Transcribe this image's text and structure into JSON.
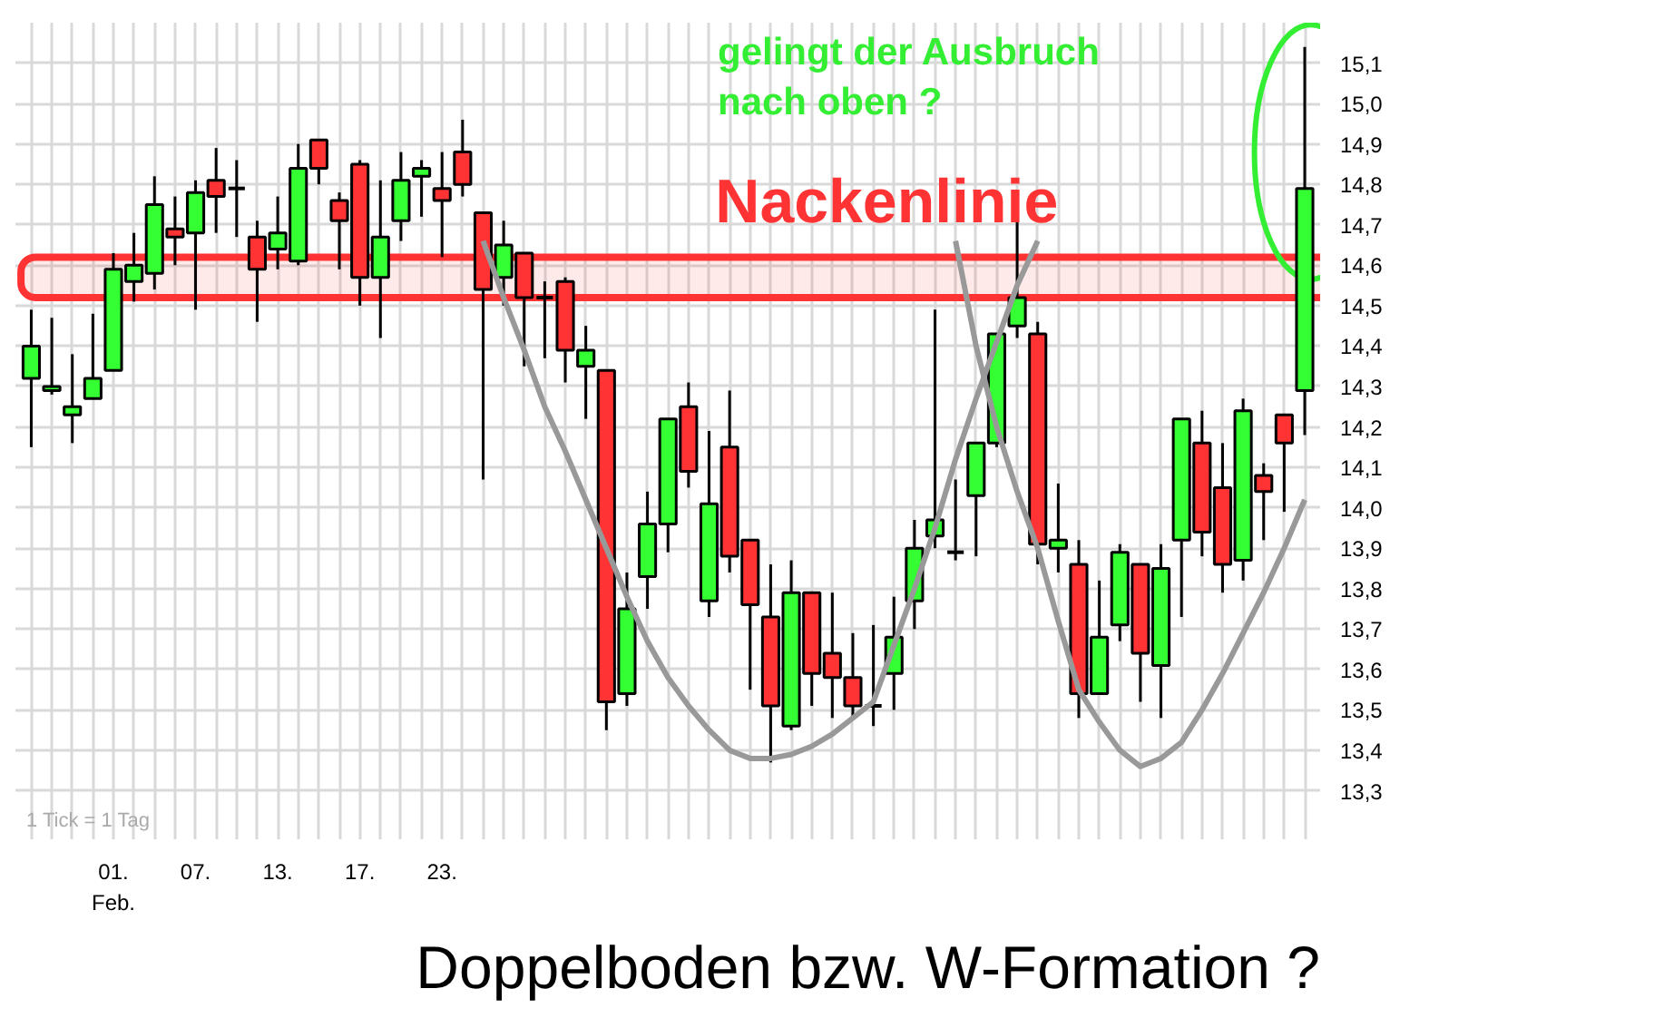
{
  "chart_data": {
    "type": "candlestick",
    "categories": [
      null,
      null,
      null,
      null,
      "01.\nFeb.",
      null,
      null,
      null,
      "07.",
      null,
      null,
      null,
      "13.",
      null,
      null,
      null,
      "17.",
      null,
      null,
      null,
      "23.",
      null,
      null,
      null,
      null,
      null,
      null,
      null,
      null,
      null,
      null,
      null,
      null,
      null,
      null,
      null,
      null,
      null,
      null,
      null,
      null,
      null,
      null,
      null,
      null,
      null,
      null,
      null,
      null,
      null,
      null,
      null,
      null,
      null,
      null,
      null,
      null,
      null,
      null,
      null,
      null,
      null,
      null
    ],
    "ohlc": [
      [
        14.32,
        14.49,
        14.15,
        14.4
      ],
      [
        14.29,
        14.47,
        14.28,
        14.3
      ],
      [
        14.23,
        14.38,
        14.16,
        14.25
      ],
      [
        14.27,
        14.48,
        14.27,
        14.32
      ],
      [
        14.34,
        14.63,
        14.34,
        14.59
      ],
      [
        14.56,
        14.68,
        14.51,
        14.6
      ],
      [
        14.58,
        14.82,
        14.54,
        14.75
      ],
      [
        14.69,
        14.77,
        14.6,
        14.67
      ],
      [
        14.68,
        14.81,
        14.49,
        14.78
      ],
      [
        14.81,
        14.89,
        14.68,
        14.77
      ],
      [
        14.79,
        14.86,
        14.67,
        14.79
      ],
      [
        14.67,
        14.71,
        14.46,
        14.59
      ],
      [
        14.64,
        14.77,
        14.59,
        14.68
      ],
      [
        14.61,
        14.9,
        14.6,
        14.84
      ],
      [
        14.91,
        14.91,
        14.8,
        14.84
      ],
      [
        14.76,
        14.78,
        14.59,
        14.71
      ],
      [
        14.85,
        14.86,
        14.5,
        14.57
      ],
      [
        14.57,
        14.81,
        14.42,
        14.67
      ],
      [
        14.71,
        14.88,
        14.66,
        14.81
      ],
      [
        14.82,
        14.86,
        14.72,
        14.84
      ],
      [
        14.79,
        14.88,
        14.62,
        14.76
      ],
      [
        14.88,
        14.96,
        14.77,
        14.8
      ],
      [
        14.73,
        14.73,
        14.07,
        14.54
      ],
      [
        14.57,
        14.71,
        14.5,
        14.65
      ],
      [
        14.63,
        14.63,
        14.35,
        14.52
      ],
      [
        14.52,
        14.56,
        14.37,
        14.52
      ],
      [
        14.56,
        14.57,
        14.31,
        14.39
      ],
      [
        14.35,
        14.45,
        14.22,
        14.39
      ],
      [
        14.34,
        14.34,
        13.45,
        13.52
      ],
      [
        13.54,
        13.84,
        13.51,
        13.75
      ],
      [
        13.83,
        14.04,
        13.75,
        13.96
      ],
      [
        13.96,
        14.22,
        13.89,
        14.22
      ],
      [
        14.25,
        14.31,
        14.05,
        14.09
      ],
      [
        13.77,
        14.19,
        13.73,
        14.01
      ],
      [
        14.15,
        14.29,
        13.84,
        13.88
      ],
      [
        13.92,
        13.92,
        13.55,
        13.76
      ],
      [
        13.73,
        13.86,
        13.37,
        13.51
      ],
      [
        13.46,
        13.87,
        13.45,
        13.79
      ],
      [
        13.79,
        13.79,
        13.51,
        13.59
      ],
      [
        13.64,
        13.79,
        13.48,
        13.58
      ],
      [
        13.58,
        13.69,
        13.48,
        13.51
      ],
      [
        13.51,
        13.71,
        13.46,
        13.51
      ],
      [
        13.59,
        13.78,
        13.5,
        13.68
      ],
      [
        13.77,
        13.97,
        13.7,
        13.9
      ],
      [
        13.93,
        14.49,
        13.9,
        13.97
      ],
      [
        13.89,
        14.07,
        13.87,
        13.89
      ],
      [
        14.03,
        14.16,
        13.88,
        14.16
      ],
      [
        14.16,
        14.43,
        14.15,
        14.43
      ],
      [
        14.45,
        14.71,
        14.42,
        14.52
      ],
      [
        14.43,
        14.46,
        13.86,
        13.91
      ],
      [
        13.9,
        14.06,
        13.84,
        13.92
      ],
      [
        13.86,
        13.92,
        13.48,
        13.54
      ],
      [
        13.54,
        13.82,
        13.54,
        13.68
      ],
      [
        13.71,
        13.91,
        13.67,
        13.89
      ],
      [
        13.86,
        13.86,
        13.52,
        13.64
      ],
      [
        13.61,
        13.91,
        13.48,
        13.85
      ],
      [
        13.92,
        14.22,
        13.73,
        14.22
      ],
      [
        14.16,
        14.24,
        13.88,
        13.94
      ],
      [
        14.05,
        14.16,
        13.79,
        13.86
      ],
      [
        13.87,
        14.27,
        13.82,
        14.24
      ],
      [
        14.08,
        14.11,
        13.92,
        14.04
      ],
      [
        14.23,
        14.23,
        13.99,
        14.16
      ],
      [
        14.29,
        15.14,
        14.18,
        14.79
      ]
    ],
    "colors": [
      "#33ff33",
      "#33ff33",
      "#33ff33",
      "#33ff33",
      "#33ff33",
      "#33ff33",
      "#33ff33",
      "#ff3333",
      "#33ff33",
      "#ff3333",
      "#000000",
      "#ff3333",
      "#33ff33",
      "#33ff33",
      "#ff3333",
      "#ff3333",
      "#ff3333",
      "#33ff33",
      "#33ff33",
      "#33ff33",
      "#ff3333",
      "#ff3333",
      "#ff3333",
      "#33ff33",
      "#ff3333",
      "#000000",
      "#ff3333",
      "#33ff33",
      "#ff3333",
      "#33ff33",
      "#33ff33",
      "#33ff33",
      "#ff3333",
      "#33ff33",
      "#ff3333",
      "#ff3333",
      "#ff3333",
      "#33ff33",
      "#ff3333",
      "#ff3333",
      "#ff3333",
      "#000000",
      "#33ff33",
      "#33ff33",
      "#33ff33",
      "#000000",
      "#33ff33",
      "#33ff33",
      "#33ff33",
      "#ff3333",
      "#33ff33",
      "#ff3333",
      "#33ff33",
      "#33ff33",
      "#ff3333",
      "#33ff33",
      "#33ff33",
      "#ff3333",
      "#ff3333",
      "#33ff33",
      "#ff3333",
      "#ff3333",
      "#33ff33"
    ],
    "ylim": [
      13.18,
      15.2
    ],
    "yticks": [
      {
        "value": 13.3,
        "label": "13,3"
      },
      {
        "value": 13.4,
        "label": "13,4"
      },
      {
        "value": 13.5,
        "label": "13,5"
      },
      {
        "value": 13.6,
        "label": "13,6"
      },
      {
        "value": 13.7,
        "label": "13,7"
      },
      {
        "value": 13.8,
        "label": "13,8"
      },
      {
        "value": 13.9,
        "label": "13,9"
      },
      {
        "value": 14.0,
        "label": "14,0"
      },
      {
        "value": 14.1,
        "label": "14,1"
      },
      {
        "value": 14.2,
        "label": "14,2"
      },
      {
        "value": 14.3,
        "label": "14,3"
      },
      {
        "value": 14.4,
        "label": "14,4"
      },
      {
        "value": 14.5,
        "label": "14,5"
      },
      {
        "value": 14.6,
        "label": "14,6"
      },
      {
        "value": 14.7,
        "label": "14,7"
      },
      {
        "value": 14.8,
        "label": "14,8"
      },
      {
        "value": 14.9,
        "label": "14,9"
      },
      {
        "value": 15.0,
        "label": "15,0"
      },
      {
        "value": 15.1,
        "label": "15,1"
      }
    ],
    "series": [
      {
        "type": "line",
        "color": "#999999",
        "values": [
          null,
          null,
          null,
          null,
          null,
          null,
          null,
          null,
          null,
          null,
          null,
          null,
          null,
          null,
          null,
          null,
          null,
          null,
          null,
          null,
          null,
          null,
          14.66,
          14.52,
          14.39,
          14.25,
          14.14,
          14.02,
          13.9,
          13.78,
          13.67,
          13.58,
          13.51,
          13.45,
          13.4,
          13.38,
          13.38,
          13.39,
          13.41,
          13.44,
          13.48,
          13.52,
          13.66,
          13.8,
          13.95,
          14.12,
          14.27,
          14.41,
          14.55,
          14.66,
          null,
          null,
          null,
          null,
          null,
          null,
          null,
          null,
          null,
          null,
          null,
          null,
          null
        ]
      },
      {
        "type": "line",
        "color": "#999999",
        "values": [
          null,
          null,
          null,
          null,
          null,
          null,
          null,
          null,
          null,
          null,
          null,
          null,
          null,
          null,
          null,
          null,
          null,
          null,
          null,
          null,
          null,
          null,
          null,
          null,
          null,
          null,
          null,
          null,
          null,
          null,
          null,
          null,
          null,
          null,
          null,
          null,
          null,
          null,
          null,
          null,
          null,
          null,
          null,
          null,
          null,
          14.66,
          14.4,
          14.2,
          14.04,
          13.9,
          13.72,
          13.55,
          13.47,
          13.4,
          13.36,
          13.38,
          13.42,
          13.5,
          13.59,
          13.69,
          13.79,
          13.9,
          14.02
        ]
      }
    ],
    "grid": true,
    "bands": [
      {
        "axis": "y",
        "from": 14.52,
        "to": 14.62,
        "label": "Nackenlinie",
        "color": "#ff3333"
      }
    ],
    "annotations": [
      "gelingt der Ausbruch\nnach oben  ?",
      "Doppelboden bzw. W-Formation ?",
      "1 Tick = 1 Tag"
    ]
  }
}
